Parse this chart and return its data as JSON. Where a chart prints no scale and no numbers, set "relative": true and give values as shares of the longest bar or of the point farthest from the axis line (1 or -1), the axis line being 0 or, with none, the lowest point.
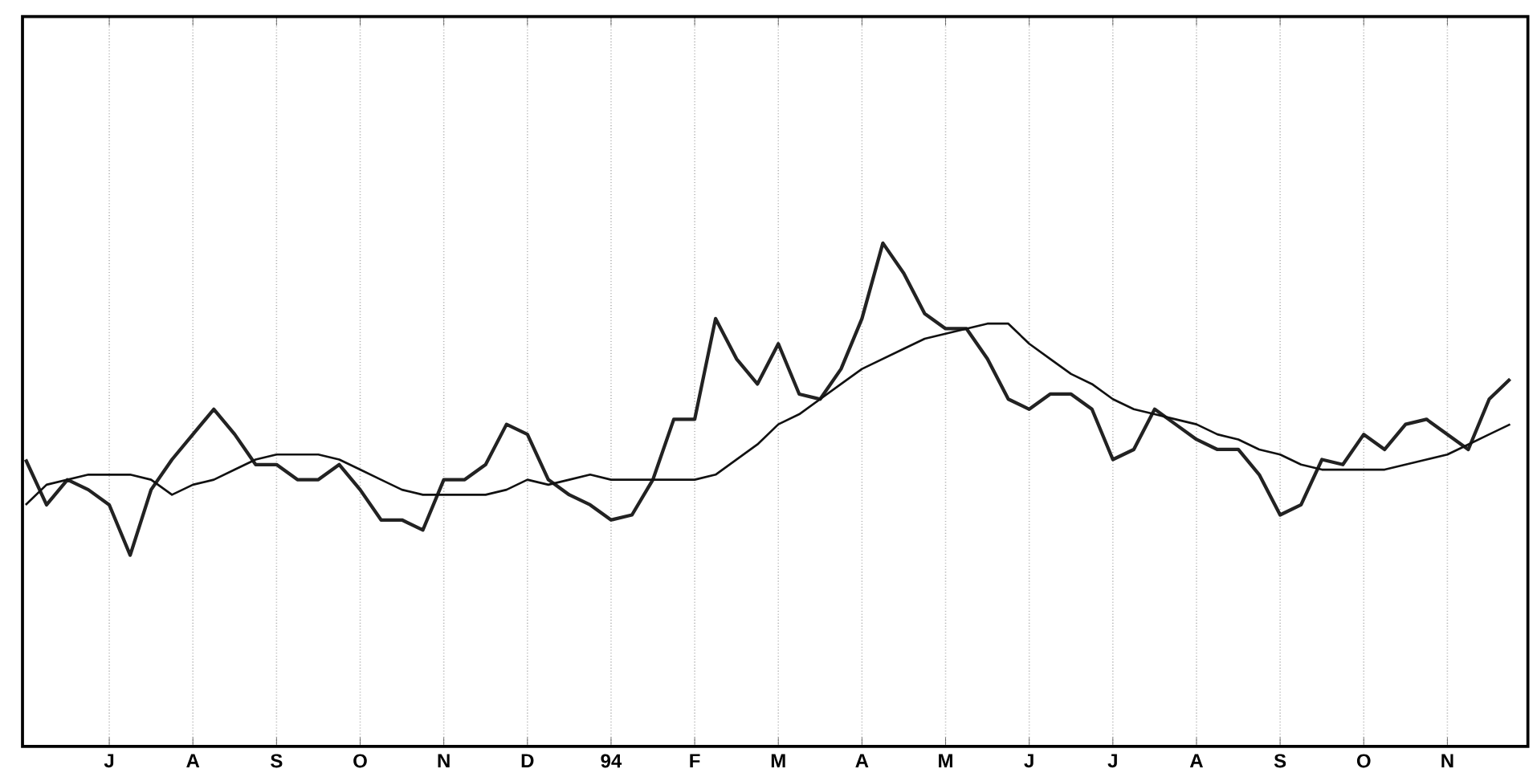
{
  "chart_data": {
    "type": "line",
    "relative": true,
    "grid": "x",
    "line_style": "solid",
    "categories": [
      null,
      null,
      null,
      null,
      "J",
      null,
      null,
      null,
      "A",
      null,
      null,
      null,
      "S",
      null,
      null,
      null,
      "O",
      null,
      null,
      null,
      "N",
      null,
      null,
      null,
      "D",
      null,
      null,
      null,
      "94",
      null,
      null,
      null,
      "F",
      null,
      null,
      null,
      "M",
      null,
      null,
      null,
      "A",
      null,
      null,
      null,
      "M",
      null,
      null,
      null,
      "J",
      null,
      null,
      null,
      "J",
      null,
      null,
      null,
      "A",
      null,
      null,
      null,
      "S",
      null,
      null,
      null,
      "O",
      null,
      null,
      null,
      "N",
      null,
      null,
      null
    ],
    "series": [
      {
        "color": "#222222",
        "values": [
          0.57,
          0.48,
          0.53,
          0.51,
          0.48,
          0.38,
          0.51,
          0.57,
          0.62,
          0.67,
          0.62,
          0.56,
          0.56,
          0.53,
          0.53,
          0.56,
          0.51,
          0.45,
          0.45,
          0.43,
          0.53,
          0.53,
          0.56,
          0.64,
          0.62,
          0.53,
          0.5,
          0.48,
          0.45,
          0.46,
          0.53,
          0.65,
          0.65,
          0.85,
          0.77,
          0.72,
          0.8,
          0.7,
          0.69,
          0.75,
          0.85,
          1.0,
          0.94,
          0.86,
          0.83,
          0.83,
          0.77,
          0.69,
          0.67,
          0.7,
          0.7,
          0.67,
          0.57,
          0.59,
          0.67,
          0.64,
          0.61,
          0.59,
          0.59,
          0.54,
          0.46,
          0.48,
          0.57,
          0.56,
          0.62,
          0.59,
          0.64,
          0.65,
          0.62,
          0.59,
          0.69,
          0.73
        ]
      },
      {
        "color": "#111111",
        "values": [
          0.48,
          0.52,
          0.53,
          0.54,
          0.54,
          0.54,
          0.53,
          0.5,
          0.52,
          0.53,
          0.55,
          0.57,
          0.58,
          0.58,
          0.58,
          0.57,
          0.55,
          0.53,
          0.51,
          0.5,
          0.5,
          0.5,
          0.5,
          0.51,
          0.53,
          0.52,
          0.53,
          0.54,
          0.53,
          0.53,
          0.53,
          0.53,
          0.53,
          0.54,
          0.57,
          0.6,
          0.64,
          0.66,
          0.69,
          0.72,
          0.75,
          0.77,
          0.79,
          0.81,
          0.82,
          0.83,
          0.84,
          0.84,
          0.8,
          0.77,
          0.74,
          0.72,
          0.69,
          0.67,
          0.66,
          0.65,
          0.64,
          0.62,
          0.61,
          0.59,
          0.58,
          0.56,
          0.55,
          0.55,
          0.55,
          0.55,
          0.56,
          0.57,
          0.58,
          0.6,
          0.62,
          0.64
        ]
      }
    ]
  }
}
